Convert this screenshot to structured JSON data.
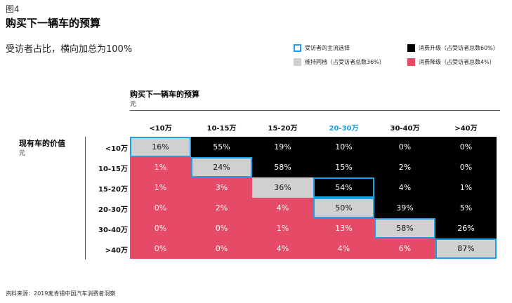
{
  "figure_label": "图4",
  "title": "购买下一辆车的预算",
  "subtitle": "受访者占比，横向加总为100%",
  "legend": [
    {
      "key": "mainstream",
      "label": "受访者的主流选择"
    },
    {
      "key": "up",
      "label": "消费升级（占受访者总数60%）"
    },
    {
      "key": "same",
      "label": "维持同档（占受访者总数36%）"
    },
    {
      "key": "down",
      "label": "消费降级（占受访者总数4%）"
    }
  ],
  "colors": {
    "down": "#e54b66",
    "same": "#d0d0d0",
    "up": "#000000",
    "mainstream_border": "#1ea0e6",
    "highlight_text": "#1ea0e6"
  },
  "source_note": "资料来源：2019麦肯锡中国汽车消费者洞察",
  "chart_data": {
    "type": "heatmap",
    "x_title": "购买下一辆车的预算",
    "x_unit": "元",
    "y_title": "现有车的价值",
    "y_unit": "元",
    "columns": [
      "<10万",
      "10-15万",
      "15-20万",
      "20-30万",
      "30-40万",
      ">40万"
    ],
    "highlight_column": "20-30万",
    "rows": [
      "<10万",
      "10-15万",
      "15-20万",
      "20-30万",
      "30-40万",
      ">40万"
    ],
    "values": [
      [
        "16%",
        "55%",
        "19%",
        "10%",
        "0%",
        "0%"
      ],
      [
        "1%",
        "24%",
        "58%",
        "15%",
        "2%",
        "0%"
      ],
      [
        "1%",
        "3%",
        "36%",
        "54%",
        "4%",
        "1%"
      ],
      [
        "0%",
        "2%",
        "4%",
        "50%",
        "39%",
        "5%"
      ],
      [
        "0%",
        "0%",
        "1%",
        "13%",
        "58%",
        "26%"
      ],
      [
        "0%",
        "0%",
        "4%",
        "4%",
        "6%",
        "87%"
      ]
    ],
    "mainstream": [
      [
        0,
        0
      ],
      [
        1,
        1
      ],
      [
        2,
        3
      ],
      [
        3,
        3
      ],
      [
        4,
        4
      ],
      [
        5,
        5
      ]
    ]
  }
}
